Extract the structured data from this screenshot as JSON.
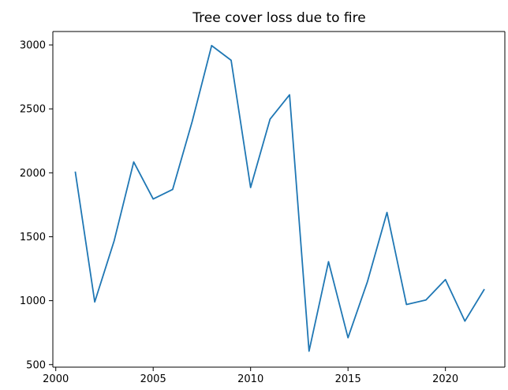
{
  "chart_data": {
    "type": "line",
    "title": "Tree cover loss due to fire",
    "xlabel": "",
    "ylabel": "",
    "xlim": [
      1999.85,
      2023.05
    ],
    "ylim": [
      480,
      3105
    ],
    "x_ticks": [
      2000,
      2005,
      2010,
      2015,
      2020
    ],
    "y_ticks": [
      500,
      1000,
      1500,
      2000,
      2500,
      3000
    ],
    "grid": false,
    "legend": "none",
    "series": [
      {
        "color": "#1f77b4",
        "x": [
          2001,
          2002,
          2003,
          2004,
          2005,
          2006,
          2007,
          2008,
          2009,
          2010,
          2011,
          2012,
          2013,
          2014,
          2015,
          2016,
          2017,
          2018,
          2019,
          2020,
          2021,
          2022
        ],
        "values": [
          2010,
          990,
          1470,
          2085,
          1795,
          1870,
          2400,
          2995,
          2880,
          1885,
          2420,
          2610,
          605,
          1305,
          710,
          1150,
          1690,
          970,
          1005,
          1165,
          840,
          1090
        ]
      }
    ]
  }
}
